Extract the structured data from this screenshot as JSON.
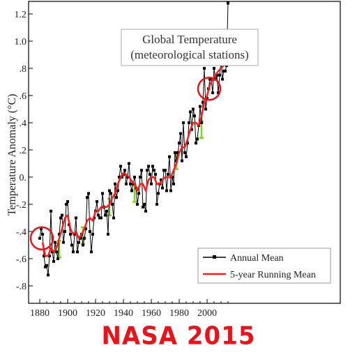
{
  "chart_data": {
    "type": "line",
    "title": "Global Temperature",
    "subtitle": "(meteorological stations)",
    "ylabel": "Temperature Anomaly (°C)",
    "xlabel": "",
    "xlim": [
      1880,
      2016
    ],
    "ylim": [
      -0.85,
      1.22
    ],
    "x_ticks": [
      "1880",
      "1900",
      "1920",
      "1940",
      "1960",
      "1980",
      "2000"
    ],
    "y_ticks": [
      {
        "value": 1.2,
        "label": "1.2"
      },
      {
        "value": 1.0,
        "label": "1.0"
      },
      {
        "value": 0.8,
        "label": ".8"
      },
      {
        "value": 0.6,
        "label": ".6"
      },
      {
        "value": 0.4,
        "label": ".4"
      },
      {
        "value": 0.2,
        "label": ".2"
      },
      {
        "value": 0.0,
        "label": "0."
      },
      {
        "value": -0.2,
        "label": "-.2"
      },
      {
        "value": -0.4,
        "label": "-.4"
      },
      {
        "value": -0.6,
        "label": "-.6"
      },
      {
        "value": -0.8,
        "label": "-.8"
      }
    ],
    "legend_position": "bottom-right",
    "grid": false,
    "series": [
      {
        "name": "Annual Mean",
        "color": "#000000",
        "marker": "square",
        "x": [
          1880,
          1881,
          1882,
          1883,
          1884,
          1885,
          1886,
          1887,
          1888,
          1889,
          1890,
          1891,
          1892,
          1893,
          1894,
          1895,
          1896,
          1897,
          1898,
          1899,
          1900,
          1901,
          1902,
          1903,
          1904,
          1905,
          1906,
          1907,
          1908,
          1909,
          1910,
          1911,
          1912,
          1913,
          1914,
          1915,
          1916,
          1917,
          1918,
          1919,
          1920,
          1921,
          1922,
          1923,
          1924,
          1925,
          1926,
          1927,
          1928,
          1929,
          1930,
          1931,
          1932,
          1933,
          1934,
          1935,
          1936,
          1937,
          1938,
          1939,
          1940,
          1941,
          1942,
          1943,
          1944,
          1945,
          1946,
          1947,
          1948,
          1949,
          1950,
          1951,
          1952,
          1953,
          1954,
          1955,
          1956,
          1957,
          1958,
          1959,
          1960,
          1961,
          1962,
          1963,
          1964,
          1965,
          1966,
          1967,
          1968,
          1969,
          1970,
          1971,
          1972,
          1973,
          1974,
          1975,
          1976,
          1977,
          1978,
          1979,
          1980,
          1981,
          1982,
          1983,
          1984,
          1985,
          1986,
          1987,
          1988,
          1989,
          1990,
          1991,
          1992,
          1993,
          1994,
          1995,
          1996,
          1997,
          1998,
          1999,
          2000,
          2001,
          2002,
          2003,
          2004,
          2005,
          2006,
          2007,
          2008,
          2009,
          2010,
          2011,
          2012,
          2013,
          2014,
          2015
        ],
        "values": [
          -0.45,
          -0.38,
          -0.42,
          -0.58,
          -0.66,
          -0.65,
          -0.72,
          -0.58,
          -0.25,
          -0.55,
          -0.62,
          -0.48,
          -0.55,
          -0.6,
          -0.42,
          -0.3,
          -0.28,
          -0.48,
          -0.4,
          -0.2,
          -0.18,
          -0.35,
          -0.42,
          -0.5,
          -0.55,
          -0.42,
          -0.3,
          -0.55,
          -0.48,
          -0.45,
          -0.42,
          -0.5,
          -0.45,
          -0.38,
          -0.15,
          -0.12,
          -0.4,
          -0.55,
          -0.42,
          -0.3,
          -0.25,
          -0.18,
          -0.28,
          -0.3,
          -0.3,
          -0.12,
          -0.22,
          -0.28,
          -0.25,
          -0.42,
          -0.1,
          -0.12,
          -0.2,
          -0.3,
          -0.05,
          -0.15,
          -0.1,
          0.0,
          0.08,
          0.0,
          0.02,
          0.05,
          -0.05,
          0.0,
          0.1,
          -0.05,
          -0.1,
          -0.05,
          0.0,
          -0.08,
          -0.2,
          -0.12,
          0.0,
          0.05,
          -0.22,
          -0.2,
          -0.25,
          0.05,
          0.08,
          0.02,
          -0.05,
          0.08,
          0.05,
          0.02,
          -0.2,
          -0.12,
          -0.05,
          -0.02,
          -0.08,
          0.05,
          0.05,
          -0.1,
          0.02,
          0.15,
          -0.1,
          0.0,
          -0.05,
          0.18,
          0.12,
          0.18,
          0.25,
          0.32,
          0.12,
          0.4,
          0.18,
          0.15,
          0.25,
          0.4,
          0.48,
          0.35,
          0.5,
          0.45,
          0.25,
          0.28,
          0.38,
          0.52,
          0.4,
          0.55,
          0.8,
          0.5,
          0.58,
          0.65,
          0.72,
          0.72,
          0.62,
          0.8,
          0.72,
          0.75,
          0.62,
          0.75,
          0.85,
          0.72,
          0.78,
          0.78,
          0.82,
          1.28
        ]
      },
      {
        "name": "5-year Running Mean",
        "color": "#ff1a1a",
        "marker": "none",
        "x": [
          1882,
          1884,
          1886,
          1888,
          1890,
          1892,
          1894,
          1896,
          1898,
          1900,
          1902,
          1904,
          1906,
          1908,
          1910,
          1912,
          1914,
          1916,
          1918,
          1920,
          1922,
          1924,
          1926,
          1928,
          1930,
          1932,
          1934,
          1936,
          1938,
          1940,
          1942,
          1944,
          1946,
          1948,
          1950,
          1952,
          1954,
          1956,
          1958,
          1960,
          1962,
          1964,
          1966,
          1968,
          1970,
          1972,
          1974,
          1976,
          1978,
          1980,
          1982,
          1984,
          1986,
          1988,
          1990,
          1992,
          1994,
          1996,
          1998,
          2000,
          2002,
          2004,
          2006,
          2008,
          2010,
          2012,
          2014
        ],
        "values": [
          -0.48,
          -0.58,
          -0.58,
          -0.52,
          -0.55,
          -0.52,
          -0.45,
          -0.38,
          -0.3,
          -0.28,
          -0.38,
          -0.42,
          -0.4,
          -0.45,
          -0.42,
          -0.38,
          -0.32,
          -0.3,
          -0.32,
          -0.25,
          -0.25,
          -0.22,
          -0.22,
          -0.22,
          -0.2,
          -0.15,
          -0.12,
          -0.05,
          0.0,
          0.03,
          0.02,
          0.0,
          -0.03,
          -0.05,
          -0.1,
          -0.05,
          -0.05,
          -0.1,
          -0.02,
          0.0,
          0.0,
          -0.05,
          -0.05,
          -0.02,
          0.0,
          0.0,
          0.0,
          0.05,
          0.1,
          0.18,
          0.22,
          0.22,
          0.28,
          0.35,
          0.4,
          0.4,
          0.38,
          0.45,
          0.55,
          0.6,
          0.68,
          0.72,
          0.75,
          0.78,
          0.8,
          0.82,
          0.92
        ]
      }
    ],
    "annotations": [
      {
        "type": "circle",
        "x": 1880,
        "y": -0.45,
        "color": "#e8141b"
      },
      {
        "type": "circle",
        "x": 2000,
        "y": 0.65,
        "color": "#e8141b"
      }
    ],
    "error_bars": {
      "color": "#7ed321",
      "x": [
        1894,
        1911,
        1930,
        1948,
        1978,
        1996
      ],
      "y": [
        -0.53,
        -0.43,
        -0.22,
        -0.12,
        0.12,
        0.35
      ]
    }
  },
  "footer": {
    "text": "NASA 2015"
  }
}
